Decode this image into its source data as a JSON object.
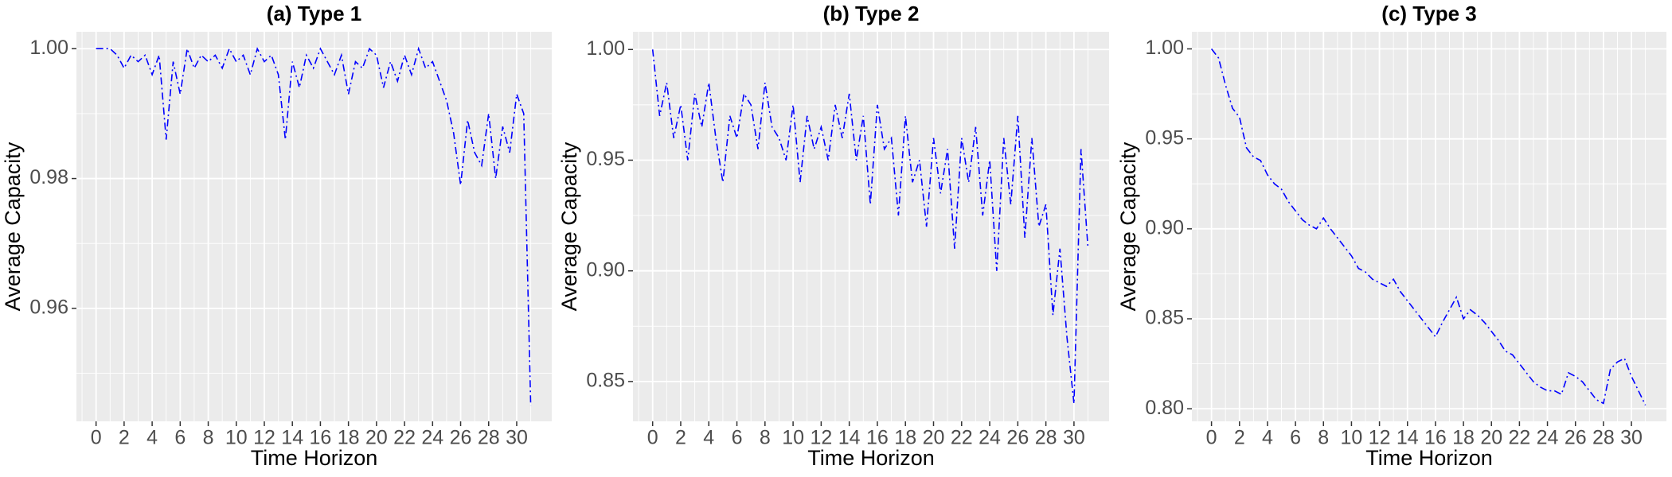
{
  "chart_data": [
    {
      "type": "line",
      "title": "(a) Type 1",
      "x_label": "Time Horizon",
      "y_label": "Average Capacity",
      "color": "#0000ff",
      "grid": true,
      "xlim": [
        -1.4,
        32.5
      ],
      "xticks": [
        0,
        2,
        4,
        6,
        8,
        10,
        12,
        14,
        16,
        18,
        20,
        22,
        24,
        26,
        28,
        30
      ],
      "ylim": [
        0.9426,
        1.0026
      ],
      "yticks": [
        0.96,
        0.98,
        {
          "value": 1,
          "label": "1.00"
        }
      ],
      "x": [
        0,
        0.5,
        1,
        1.5,
        2,
        2.5,
        3,
        3.5,
        4,
        4.5,
        5,
        5.5,
        6,
        6.5,
        7,
        7.5,
        8,
        8.5,
        9,
        9.5,
        10,
        10.5,
        11,
        11.5,
        12,
        12.5,
        13,
        13.5,
        14,
        14.5,
        15,
        15.5,
        16,
        16.5,
        17,
        17.5,
        18,
        18.5,
        19,
        19.5,
        20,
        20.5,
        21,
        21.5,
        22,
        22.5,
        23,
        23.5,
        24,
        24.5,
        25,
        25.5,
        26,
        26.5,
        27,
        27.5,
        28,
        28.5,
        29,
        29.5,
        30,
        30.5,
        31
      ],
      "values": [
        1,
        1,
        1,
        0.999,
        0.997,
        0.999,
        0.998,
        0.999,
        0.996,
        0.999,
        0.986,
        0.998,
        0.993,
        1,
        0.997,
        0.999,
        0.998,
        0.999,
        0.997,
        1,
        0.998,
        0.999,
        0.996,
        1,
        0.998,
        0.999,
        0.996,
        0.986,
        0.998,
        0.994,
        0.999,
        0.997,
        1,
        0.998,
        0.996,
        0.999,
        0.993,
        0.998,
        0.997,
        1,
        0.999,
        0.994,
        0.998,
        0.995,
        0.999,
        0.996,
        1,
        0.997,
        0.998,
        0.995,
        0.992,
        0.987,
        0.979,
        0.989,
        0.984,
        0.982,
        0.99,
        0.98,
        0.988,
        0.984,
        0.993,
        0.99,
        0.945
      ]
    },
    {
      "type": "line",
      "title": "(b) Type 2",
      "x_label": "Time Horizon",
      "y_label": "Average Capacity",
      "color": "#0000ff",
      "grid": true,
      "xlim": [
        -1.4,
        32.5
      ],
      "xticks": [
        0,
        2,
        4,
        6,
        8,
        10,
        12,
        14,
        16,
        18,
        20,
        22,
        24,
        26,
        28,
        30
      ],
      "ylim": [
        0.832,
        1.008
      ],
      "yticks": [
        0.85,
        {
          "value": 0.9,
          "label": "0.90"
        },
        0.95,
        {
          "value": 1,
          "label": "1.00"
        }
      ],
      "x": [
        0,
        0.5,
        1,
        1.5,
        2,
        2.5,
        3,
        3.5,
        4,
        4.5,
        5,
        5.5,
        6,
        6.5,
        7,
        7.5,
        8,
        8.5,
        9,
        9.5,
        10,
        10.5,
        11,
        11.5,
        12,
        12.5,
        13,
        13.5,
        14,
        14.5,
        15,
        15.5,
        16,
        16.5,
        17,
        17.5,
        18,
        18.5,
        19,
        19.5,
        20,
        20.5,
        21,
        21.5,
        22,
        22.5,
        23,
        23.5,
        24,
        24.5,
        25,
        25.5,
        26,
        26.5,
        27,
        27.5,
        28,
        28.5,
        29,
        29.5,
        30,
        30.5,
        31
      ],
      "values": [
        1,
        0.97,
        0.985,
        0.96,
        0.975,
        0.95,
        0.98,
        0.965,
        0.985,
        0.96,
        0.94,
        0.97,
        0.96,
        0.98,
        0.975,
        0.955,
        0.985,
        0.965,
        0.96,
        0.95,
        0.975,
        0.94,
        0.97,
        0.955,
        0.965,
        0.95,
        0.975,
        0.96,
        0.98,
        0.95,
        0.97,
        0.93,
        0.975,
        0.955,
        0.96,
        0.925,
        0.97,
        0.94,
        0.95,
        0.92,
        0.96,
        0.935,
        0.955,
        0.91,
        0.96,
        0.94,
        0.965,
        0.925,
        0.95,
        0.9,
        0.96,
        0.93,
        0.97,
        0.915,
        0.96,
        0.92,
        0.93,
        0.88,
        0.91,
        0.87,
        0.84,
        0.955,
        0.91
      ]
    },
    {
      "type": "line",
      "title": "(c) Type 3",
      "x_label": "Time Horizon",
      "y_label": "Average Capacity",
      "color": "#0000ff",
      "grid": true,
      "xlim": [
        -1.4,
        32.5
      ],
      "xticks": [
        0,
        2,
        4,
        6,
        8,
        10,
        12,
        14,
        16,
        18,
        20,
        22,
        24,
        26,
        28,
        30
      ],
      "ylim": [
        0.793,
        1.0095
      ],
      "yticks": [
        {
          "value": 0.8,
          "label": "0.80"
        },
        0.85,
        {
          "value": 0.9,
          "label": "0.90"
        },
        0.95,
        {
          "value": 1,
          "label": "1.00"
        }
      ],
      "x": [
        0,
        0.5,
        1,
        1.5,
        2,
        2.5,
        3,
        3.5,
        4,
        4.5,
        5,
        5.5,
        6,
        6.5,
        7,
        7.5,
        8,
        8.5,
        9,
        9.5,
        10,
        10.5,
        11,
        11.5,
        12,
        12.5,
        13,
        13.5,
        14,
        14.5,
        15,
        15.5,
        16,
        16.5,
        17,
        17.5,
        18,
        18.5,
        19,
        19.5,
        20,
        20.5,
        21,
        21.5,
        22,
        22.5,
        23,
        23.5,
        24,
        24.5,
        25,
        25.5,
        26,
        26.5,
        27,
        27.5,
        28,
        28.5,
        29,
        29.5,
        30,
        30.5,
        31
      ],
      "values": [
        1,
        0.995,
        0.98,
        0.967,
        0.962,
        0.945,
        0.94,
        0.938,
        0.93,
        0.925,
        0.922,
        0.915,
        0.91,
        0.905,
        0.902,
        0.9,
        0.906,
        0.9,
        0.895,
        0.89,
        0.885,
        0.878,
        0.876,
        0.872,
        0.87,
        0.868,
        0.872,
        0.865,
        0.86,
        0.855,
        0.85,
        0.845,
        0.84,
        0.848,
        0.855,
        0.862,
        0.85,
        0.855,
        0.852,
        0.848,
        0.843,
        0.838,
        0.832,
        0.83,
        0.825,
        0.82,
        0.815,
        0.812,
        0.81,
        0.81,
        0.808,
        0.82,
        0.818,
        0.815,
        0.81,
        0.805,
        0.803,
        0.822,
        0.826,
        0.828,
        0.818,
        0.81,
        0.802
      ]
    }
  ]
}
